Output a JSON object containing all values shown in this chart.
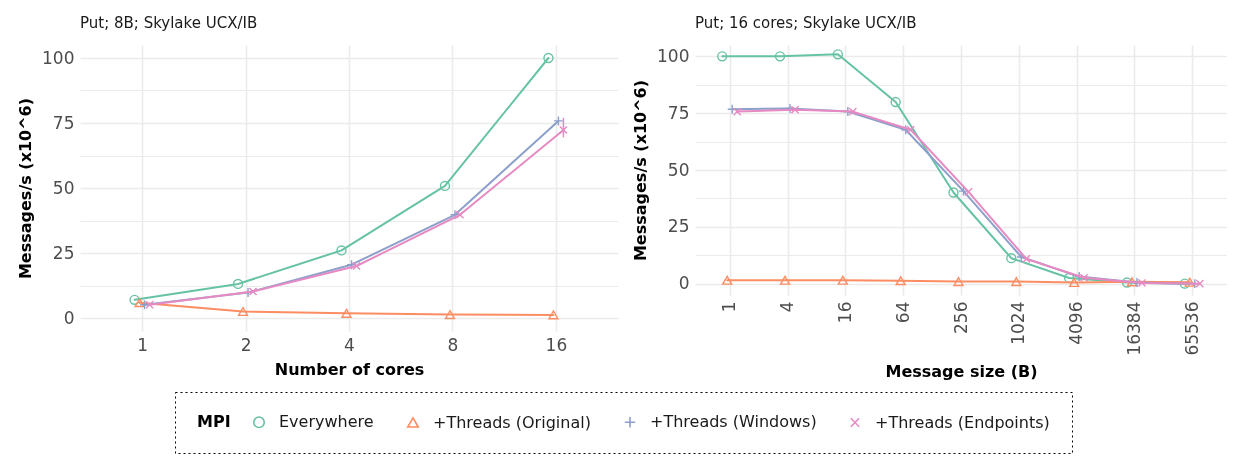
{
  "chart_data": [
    {
      "type": "line",
      "title": "Put; 8B; Skylake UCX/IB",
      "xlabel": "Number of cores",
      "ylabel": "Messages/s (x10^6)",
      "legend_title": "MPI",
      "legend": "bottom",
      "grid": true,
      "line_style": "solid",
      "categories": [
        "1",
        "2",
        "4",
        "8",
        "16"
      ],
      "ylim": [
        -5,
        105
      ],
      "yticks": [
        0,
        {
          "value": 12.5,
          "label": null
        },
        25,
        {
          "value": 37.5,
          "label": null
        },
        50,
        {
          "value": 62.5,
          "label": null
        },
        75,
        {
          "value": 87.5,
          "label": null
        },
        100
      ],
      "series": [
        {
          "name": "Everywhere",
          "color": "#66c2a5",
          "marker": "circle",
          "values": [
            7,
            13.1,
            26,
            50.8,
            100
          ]
        },
        {
          "name": "+Threads (Original)",
          "color": "#fc8d62",
          "marker": "triangle",
          "values": [
            5.9,
            2.5,
            1.8,
            1.3,
            1.2
          ]
        },
        {
          "name": "+Threads (Windows)",
          "color": "#8da0cb",
          "marker": "plus",
          "values": [
            5.1,
            9.8,
            20.5,
            39.7,
            75.8
          ]
        },
        {
          "name": "+Threads (Endpoints)",
          "color": "#e78ac3",
          "marker": "cross",
          "values": [
            5.1,
            10.2,
            20,
            39.7,
            72.3
          ],
          "errors": [
            null,
            null,
            null,
            null,
            [
              69.5,
              77
            ]
          ]
        }
      ]
    },
    {
      "type": "line",
      "title": "Put; 16 cores; Skylake UCX/IB",
      "xlabel": "Message size (B)",
      "ylabel": "Messages/s (x10^6)",
      "legend": "bottom",
      "grid": true,
      "line_style": "solid",
      "categories": [
        "1",
        "4",
        "16",
        "64",
        "256",
        "1024",
        "4096",
        "16384",
        "65536"
      ],
      "ylim": [
        -5,
        105
      ],
      "yticks": [
        0,
        {
          "value": 12.5,
          "label": null
        },
        25,
        {
          "value": 37.5,
          "label": null
        },
        50,
        {
          "value": 62.5,
          "label": null
        },
        75,
        {
          "value": 87.5,
          "label": null
        },
        100
      ],
      "series": [
        {
          "name": "Everywhere",
          "color": "#66c2a5",
          "marker": "circle",
          "values": [
            100,
            100,
            100.9,
            79.9,
            40.1,
            11.2,
            2.5,
            0.5,
            0
          ]
        },
        {
          "name": "+Threads (Original)",
          "color": "#fc8d62",
          "marker": "triangle",
          "values": [
            1.5,
            1.5,
            1.5,
            1.3,
            0.9,
            0.9,
            0.5,
            0.8,
            0.6
          ]
        },
        {
          "name": "+Threads (Windows)",
          "color": "#8da0cb",
          "marker": "plus",
          "values": [
            76.7,
            77.1,
            75.7,
            67.7,
            40.7,
            11.7,
            3.1,
            0.5,
            0
          ]
        },
        {
          "name": "+Threads (Endpoints)",
          "color": "#e78ac3",
          "marker": "cross",
          "values": [
            75.7,
            76.5,
            75.7,
            67.7,
            40.4,
            10.9,
            2.6,
            0.3,
            0
          ]
        }
      ]
    }
  ]
}
